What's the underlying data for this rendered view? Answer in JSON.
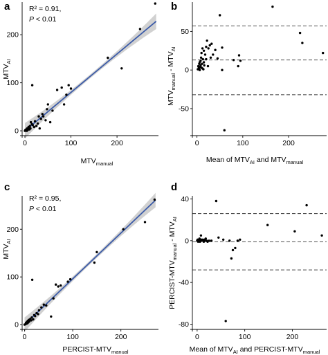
{
  "chart_data": [
    {
      "panel": "a",
      "type": "scatter",
      "xlabel": {
        "main": "MTV",
        "sub": "manual"
      },
      "ylabel": {
        "main": "MTV",
        "sub": "AI"
      },
      "xlim": [
        -6,
        290
      ],
      "ylim": [
        -10,
        268
      ],
      "xticks": [
        0,
        100,
        200
      ],
      "yticks": [
        0,
        100,
        200
      ],
      "annotation": {
        "r2": "R² = 0.91,",
        "p_italic": "P",
        "p_rest": " < 0.01"
      },
      "fit_line": {
        "x0": 0,
        "x1": 285,
        "slope": 0.8,
        "intercept": 0
      },
      "series": [
        {
          "x": [
            0,
            1,
            2,
            3,
            4,
            5,
            6,
            7,
            8,
            9,
            10,
            11,
            12,
            13,
            15,
            16,
            17,
            20,
            22,
            25,
            28,
            30,
            32,
            35,
            38,
            40,
            45,
            48,
            50,
            55,
            60,
            70,
            80,
            85,
            90,
            95,
            100,
            180,
            210,
            250,
            283
          ],
          "y": [
            0,
            2,
            1,
            3,
            0,
            5,
            2,
            4,
            8,
            6,
            3,
            10,
            5,
            18,
            14,
            95,
            12,
            8,
            20,
            10,
            15,
            30,
            5,
            25,
            35,
            30,
            22,
            45,
            55,
            18,
            42,
            85,
            90,
            55,
            75,
            95,
            88,
            152,
            130,
            212,
            265
          ]
        }
      ]
    },
    {
      "panel": "b",
      "type": "scatter",
      "xlabel": {
        "parts": [
          "Mean of MTV",
          "AI",
          " and MTV",
          "manual"
        ]
      },
      "ylabel": {
        "parts": [
          "MTV",
          "manual",
          " - MTV",
          "AI"
        ]
      },
      "xlim": [
        -10,
        283
      ],
      "ylim": [
        -85,
        88
      ],
      "xticks": [
        0,
        100,
        200
      ],
      "yticks": [
        -50,
        0,
        50
      ],
      "reference_lines": [
        57,
        13,
        -32
      ],
      "series": [
        {
          "x": [
            2,
            3,
            4,
            5,
            5,
            6,
            6,
            7,
            8,
            8,
            9,
            10,
            10,
            11,
            12,
            12,
            13,
            14,
            15,
            15,
            16,
            18,
            20,
            20,
            22,
            24,
            25,
            28,
            30,
            32,
            35,
            40,
            45,
            50,
            55,
            55,
            60,
            80,
            90,
            92,
            95,
            165,
            225,
            230,
            275
          ],
          "y": [
            1,
            5,
            3,
            2,
            8,
            0,
            10,
            4,
            12,
            6,
            16,
            3,
            22,
            8,
            2,
            28,
            14,
            1,
            25,
            10,
            6,
            20,
            30,
            14,
            38,
            5,
            28,
            32,
            16,
            34,
            20,
            26,
            15,
            71,
            0,
            29,
            -78,
            13,
            5,
            19,
            12,
            82,
            48,
            35,
            22
          ]
        }
      ]
    },
    {
      "panel": "c",
      "type": "scatter",
      "xlabel": {
        "main": "PERCIST-MTV",
        "sub": "manual"
      },
      "ylabel": {
        "main": "MTV",
        "sub": "AI"
      },
      "xlim": [
        -5,
        278
      ],
      "ylim": [
        -10,
        270
      ],
      "xticks": [
        0,
        100,
        200
      ],
      "yticks": [
        0,
        100,
        200
      ],
      "annotation": {
        "r2": "R² = 0.95,",
        "p_italic": "P",
        "p_rest": " < 0.01"
      },
      "fit_line": {
        "x0": 0,
        "x1": 272,
        "slope": 0.96,
        "intercept": 0
      },
      "series": [
        {
          "x": [
            0,
            2,
            3,
            4,
            5,
            6,
            7,
            8,
            9,
            10,
            12,
            14,
            15,
            16,
            18,
            20,
            22,
            25,
            28,
            30,
            35,
            40,
            45,
            55,
            60,
            65,
            70,
            75,
            90,
            95,
            145,
            150,
            205,
            250,
            270
          ],
          "y": [
            0,
            1,
            4,
            2,
            6,
            3,
            8,
            5,
            10,
            7,
            12,
            9,
            15,
            94,
            11,
            20,
            18,
            24,
            22,
            30,
            36,
            42,
            40,
            17,
            55,
            84,
            80,
            82,
            90,
            95,
            130,
            152,
            200,
            215,
            262
          ]
        }
      ]
    },
    {
      "panel": "d",
      "type": "scatter",
      "xlabel": {
        "parts": [
          "Mean of MTV",
          "AI",
          " and PERCIST-MTV",
          "manual"
        ]
      },
      "ylabel": {
        "parts": [
          "PERCIST-MTV",
          "manual",
          " - MTV",
          "AI"
        ]
      },
      "xlim": [
        -10,
        272
      ],
      "ylim": [
        -85,
        43
      ],
      "xticks": [
        0,
        100,
        200
      ],
      "yticks": [
        -80,
        -40,
        0,
        40
      ],
      "reference_lines": [
        26,
        -1,
        -28
      ],
      "series": [
        {
          "x": [
            0,
            1,
            2,
            3,
            4,
            5,
            6,
            7,
            8,
            9,
            10,
            12,
            14,
            15,
            16,
            18,
            20,
            22,
            25,
            30,
            40,
            45,
            55,
            60,
            68,
            72,
            75,
            80,
            85,
            90,
            148,
            205,
            230,
            262
          ],
          "y": [
            0,
            1,
            -1,
            0,
            1,
            2,
            -1,
            0,
            5,
            1,
            0,
            1,
            -1,
            0,
            1,
            2,
            0,
            -1,
            0,
            0,
            38,
            3,
            1,
            -77,
            0,
            -17,
            -9,
            -7,
            0,
            1,
            15,
            9,
            34,
            5
          ]
        }
      ]
    }
  ]
}
